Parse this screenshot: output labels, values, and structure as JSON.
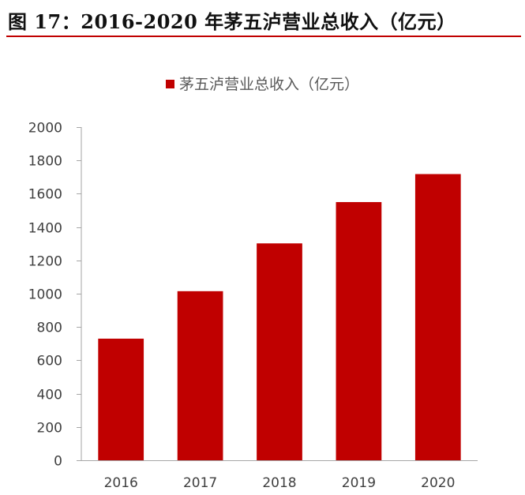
{
  "figure": {
    "title": "图 17：2016-2020 年茅五泸营业总收入（亿元）",
    "rule_color": "#c00000"
  },
  "chart_data": {
    "type": "bar",
    "categories": [
      "2016",
      "2017",
      "2018",
      "2019",
      "2020"
    ],
    "series": [
      {
        "name": "茅五泸营业总收入（亿元）",
        "values": [
          730,
          1015,
          1302,
          1550,
          1718
        ],
        "color": "#c00000"
      }
    ],
    "ylim": [
      0,
      2000
    ],
    "yticks": [
      0,
      200,
      400,
      600,
      800,
      1000,
      1200,
      1400,
      1600,
      1800,
      2000
    ],
    "grid": false,
    "legend_position": "top-center",
    "xlabel": "",
    "ylabel": ""
  }
}
